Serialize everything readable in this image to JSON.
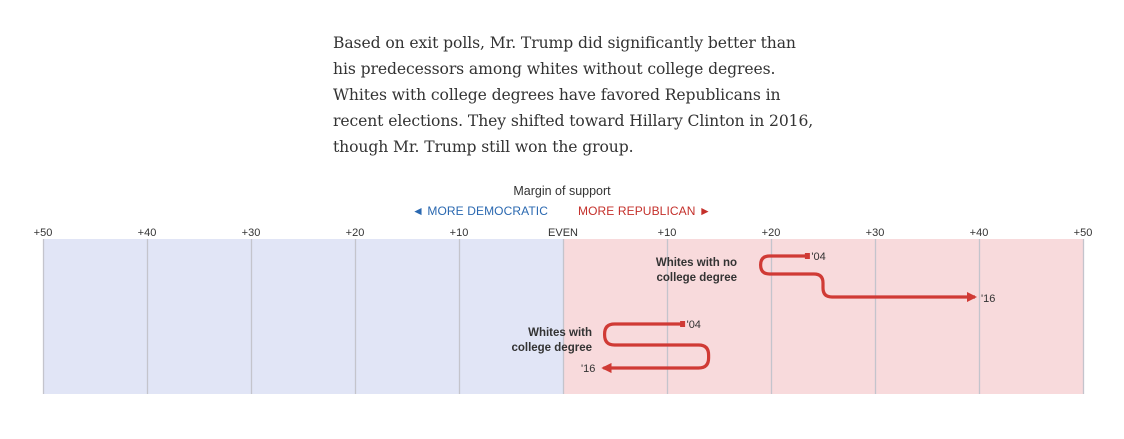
{
  "intro": {
    "lines": [
      "Based on exit polls, Mr. Trump did significantly better than",
      "his predecessors among whites without college degrees.",
      "Whites with college degrees have favored Republicans in",
      "recent elections. They shifted toward Hillary Clinton in 2016,",
      "though Mr. Trump still won the group."
    ]
  },
  "chart_data": {
    "type": "line",
    "title": "Margin of support",
    "direction_labels": {
      "democratic": "◄ MORE DEMOCRATIC",
      "republican": "MORE REPUBLICAN ►"
    },
    "x_range": [
      -50,
      50
    ],
    "x_ticks": [
      {
        "value": -50,
        "label": "+50"
      },
      {
        "value": -40,
        "label": "+40"
      },
      {
        "value": -30,
        "label": "+30"
      },
      {
        "value": -20,
        "label": "+20"
      },
      {
        "value": -10,
        "label": "+10"
      },
      {
        "value": 0,
        "label": "EVEN"
      },
      {
        "value": 10,
        "label": "+10"
      },
      {
        "value": 20,
        "label": "+20"
      },
      {
        "value": 30,
        "label": "+30"
      },
      {
        "value": 40,
        "label": "+40"
      },
      {
        "value": 50,
        "label": "+50"
      }
    ],
    "grid": true,
    "colors": {
      "democratic_band": "#e1e5f6",
      "republican_band": "#f8dadc",
      "line": "#d03a35",
      "grid": "#c4c4cc"
    },
    "series": [
      {
        "name": "Whites with no college degree",
        "label_lines": [
          "Whites with no",
          "college degree"
        ],
        "points": [
          {
            "year": "'04",
            "value": 23.5
          },
          {
            "value": 19
          },
          {
            "value": 25
          },
          {
            "year": "'16",
            "value": 40
          }
        ]
      },
      {
        "name": "Whites with college degree",
        "label_lines": [
          "Whites with",
          "college degree"
        ],
        "points": [
          {
            "year": "'04",
            "value": 11.5
          },
          {
            "value": 4
          },
          {
            "value": 14
          },
          {
            "year": "'16",
            "value": 3.5
          }
        ]
      }
    ]
  }
}
